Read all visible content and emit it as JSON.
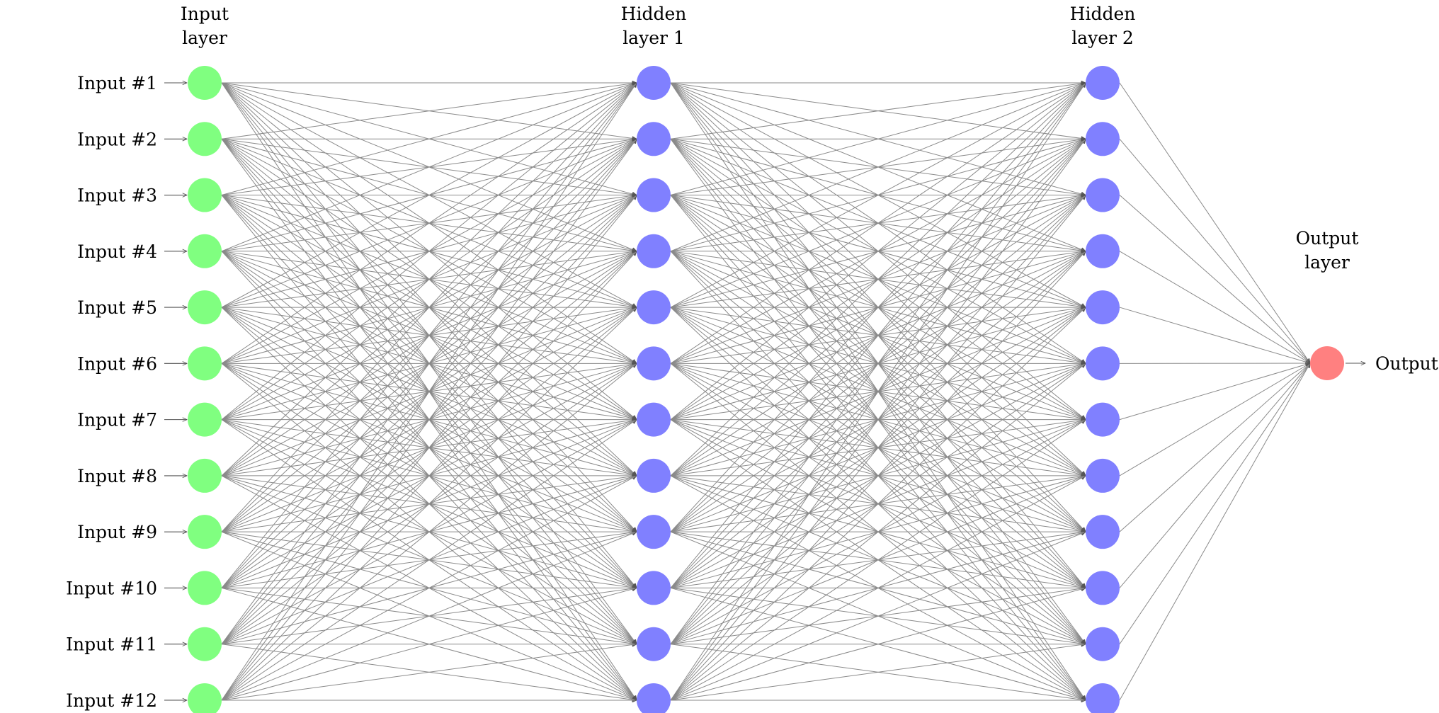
{
  "layers": [
    {
      "id": "input",
      "title_lines": [
        "Input",
        "layer"
      ],
      "color": "#80ff80",
      "node_labels": [
        "Input #1",
        "Input #2",
        "Input #3",
        "Input #4",
        "Input #5",
        "Input #6",
        "Input #7",
        "Input #8",
        "Input #9",
        "Input #10",
        "Input #11",
        "Input #12"
      ]
    },
    {
      "id": "hidden1",
      "title_lines": [
        "Hidden",
        "layer 1"
      ],
      "color": "#8080ff",
      "node_count": 12
    },
    {
      "id": "hidden2",
      "title_lines": [
        "Hidden",
        "layer 2"
      ],
      "color": "#8080ff",
      "node_count": 12
    },
    {
      "id": "output",
      "title_lines": [
        "Output",
        "layer"
      ],
      "color": "#ff8080",
      "node_count": 1,
      "output_label": "Output"
    }
  ],
  "connections": "fully-connected",
  "edge_color": "#8a8a8a"
}
